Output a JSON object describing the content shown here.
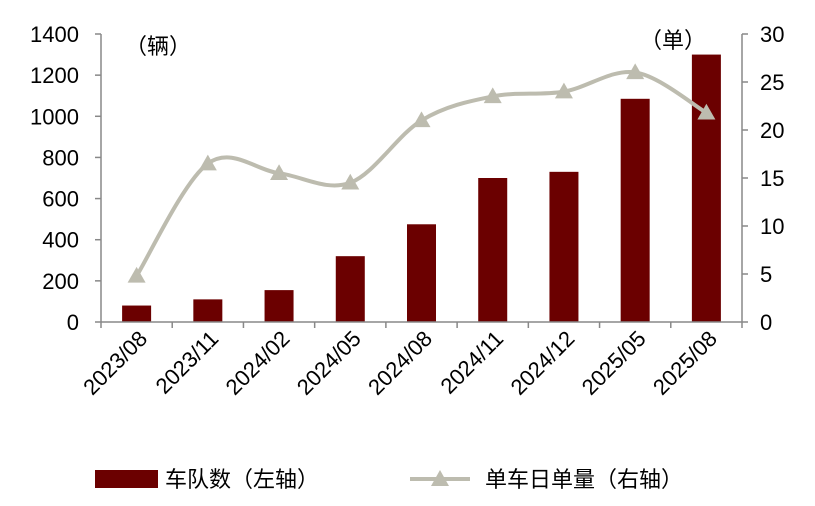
{
  "chart_data": {
    "type": "bar+line",
    "categories": [
      "2023/08",
      "2023/11",
      "2024/02",
      "2024/05",
      "2024/08",
      "2024/11",
      "2024/12",
      "2025/05",
      "2025/08"
    ],
    "series": [
      {
        "name": "车队数（左轴）",
        "type": "bar",
        "axis": "left",
        "color": "#6b0000",
        "values": [
          80,
          110,
          155,
          320,
          475,
          700,
          730,
          1085,
          1300
        ]
      },
      {
        "name": "单车日单量（右轴）",
        "type": "line",
        "axis": "right",
        "color": "#bdbcaf",
        "marker": "triangle",
        "values": [
          4.8,
          16.5,
          15.5,
          14.5,
          21,
          23.5,
          24,
          26,
          21.8
        ]
      }
    ],
    "y_left": {
      "unit_label": "（辆）",
      "ylim": [
        0,
        1400
      ],
      "ticks": [
        "0",
        "200",
        "400",
        "600",
        "800",
        "1000",
        "1200",
        "1400"
      ]
    },
    "y_right": {
      "unit_label": "（单）",
      "ylim": [
        0,
        30
      ],
      "ticks": [
        "0",
        "5",
        "10",
        "15",
        "20",
        "25",
        "30"
      ]
    },
    "grid": false,
    "legend_position": "bottom"
  }
}
